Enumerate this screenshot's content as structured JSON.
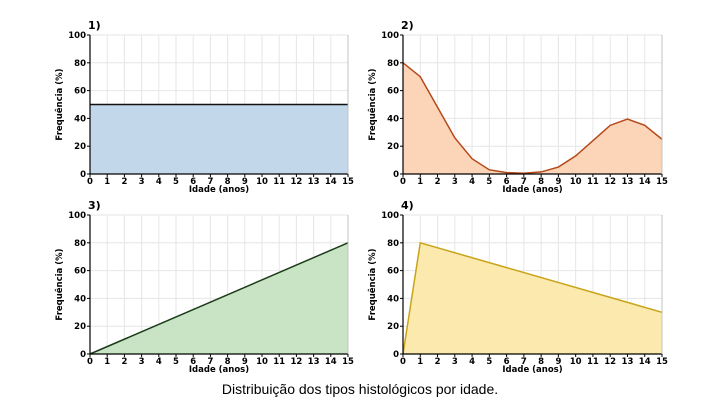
{
  "caption": "Distribuição dos tipos histológicos por idade.",
  "chart_data": [
    {
      "type": "area",
      "title": "1)",
      "xlabel": "Idade (anos)",
      "ylabel": "Frequência (%)",
      "xlim": [
        0,
        15
      ],
      "ylim": [
        0,
        100
      ],
      "x_ticks": [
        0,
        1,
        2,
        3,
        4,
        5,
        6,
        7,
        8,
        9,
        10,
        11,
        12,
        13,
        14,
        15
      ],
      "y_ticks": [
        0,
        20,
        40,
        60,
        80,
        100
      ],
      "grid": true,
      "x": [
        0,
        15
      ],
      "y": [
        50,
        50
      ],
      "fill_color": "#c3d7ea",
      "line_color": "#111111"
    },
    {
      "type": "area",
      "title": "2)",
      "xlabel": "Idade (anos)",
      "ylabel": "Frequência (%)",
      "xlim": [
        0,
        15
      ],
      "ylim": [
        0,
        100
      ],
      "x_ticks": [
        0,
        1,
        2,
        3,
        4,
        5,
        6,
        7,
        8,
        9,
        10,
        11,
        12,
        13,
        14,
        15
      ],
      "y_ticks": [
        0,
        20,
        40,
        60,
        80,
        100
      ],
      "grid": true,
      "x": [
        0,
        1,
        2,
        3,
        4,
        5,
        6,
        7,
        8,
        9,
        10,
        11,
        12,
        13,
        14,
        15
      ],
      "y": [
        80,
        70,
        48,
        26,
        11,
        3,
        1,
        0.5,
        1.5,
        5,
        13,
        24,
        35,
        39.5,
        35,
        25
      ],
      "fill_color": "#fcd5b9",
      "line_color": "#b5491a"
    },
    {
      "type": "area",
      "title": "3)",
      "xlabel": "Idade (anos)",
      "ylabel": "Frequência (%)",
      "xlim": [
        0,
        15
      ],
      "ylim": [
        0,
        100
      ],
      "x_ticks": [
        0,
        1,
        2,
        3,
        4,
        5,
        6,
        7,
        8,
        9,
        10,
        11,
        12,
        13,
        14,
        15
      ],
      "y_ticks": [
        0,
        20,
        40,
        60,
        80,
        100
      ],
      "grid": true,
      "x": [
        0,
        15
      ],
      "y": [
        0,
        80
      ],
      "fill_color": "#c9e4c4",
      "line_color": "#1c3b1a"
    },
    {
      "type": "area",
      "title": "4)",
      "xlabel": "Idade (anos)",
      "ylabel": "Frequência (%)",
      "xlim": [
        0,
        15
      ],
      "ylim": [
        0,
        100
      ],
      "x_ticks": [
        0,
        1,
        2,
        3,
        4,
        5,
        6,
        7,
        8,
        9,
        10,
        11,
        12,
        13,
        14,
        15
      ],
      "y_ticks": [
        0,
        20,
        40,
        60,
        80,
        100
      ],
      "grid": true,
      "x": [
        0,
        1,
        15
      ],
      "y": [
        0,
        80,
        30
      ],
      "fill_color": "#fbe9ad",
      "line_color": "#c9a41a"
    }
  ]
}
